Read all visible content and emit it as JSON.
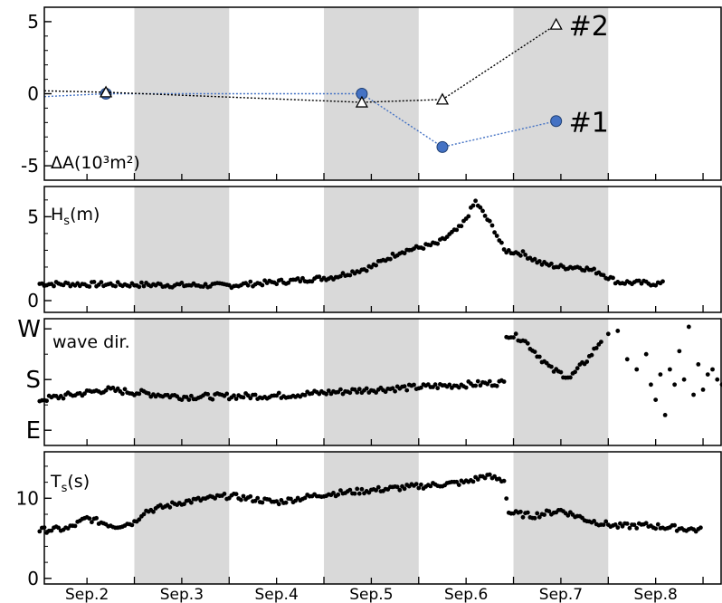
{
  "chart_data": [
    {
      "type": "line",
      "label": "ΔA(10³m²)",
      "y_ticks": [
        5,
        0,
        -5
      ],
      "ylim": [
        -6,
        6
      ],
      "series": [
        {
          "name": "#1",
          "color": "#4472c4",
          "line_style": "dotted",
          "marker": "filled-circle",
          "start_y": -0.2,
          "points": [
            [
              2.2,
              0.0
            ],
            [
              4.9,
              0.0
            ],
            [
              5.75,
              -3.7
            ],
            [
              6.95,
              -1.9
            ]
          ]
        },
        {
          "name": "#2",
          "color": "#000000",
          "line_style": "dotted",
          "marker": "open-triangle",
          "start_y": 0.2,
          "points": [
            [
              2.2,
              0.1
            ],
            [
              4.9,
              -0.6
            ],
            [
              5.75,
              -0.4
            ],
            [
              6.95,
              4.8
            ]
          ]
        }
      ]
    },
    {
      "type": "scatter",
      "label_main": "H",
      "label_sub": "s",
      "label_unit": "(m)",
      "y_ticks": [
        5,
        0
      ],
      "ylim": [
        -0.7,
        6.8
      ],
      "anchors": [
        [
          1.5,
          1.0
        ],
        [
          3.5,
          0.9
        ],
        [
          4.0,
          1.1
        ],
        [
          4.6,
          1.4
        ],
        [
          5.0,
          2.0
        ],
        [
          5.3,
          2.9
        ],
        [
          5.7,
          3.4
        ],
        [
          5.95,
          4.4
        ],
        [
          6.1,
          5.9
        ],
        [
          6.3,
          4.2
        ],
        [
          6.4,
          3.0
        ],
        [
          6.6,
          2.8
        ],
        [
          6.8,
          2.2
        ],
        [
          7.0,
          2.0
        ],
        [
          7.2,
          2.0
        ],
        [
          7.4,
          1.7
        ],
        [
          7.6,
          1.1
        ],
        [
          8.1,
          1.0
        ]
      ]
    },
    {
      "type": "scatter",
      "label": "wave dir.",
      "y_ticks": [
        "W",
        "S",
        "E"
      ],
      "ylim": [
        -0.15,
        1.1
      ],
      "anchors": [
        [
          1.5,
          0.3
        ],
        [
          2.2,
          0.4
        ],
        [
          3.0,
          0.33
        ],
        [
          4.0,
          0.34
        ],
        [
          5.0,
          0.4
        ],
        [
          6.0,
          0.45
        ],
        [
          6.4,
          0.47
        ],
        [
          6.42,
          0.95
        ],
        [
          6.6,
          0.9
        ],
        [
          6.9,
          0.6
        ],
        [
          7.1,
          0.52
        ],
        [
          7.3,
          0.72
        ],
        [
          7.45,
          0.92
        ]
      ],
      "scattered_points": [
        [
          7.5,
          0.95
        ],
        [
          7.6,
          0.98
        ],
        [
          7.7,
          0.7
        ],
        [
          7.8,
          0.6
        ],
        [
          7.9,
          0.75
        ],
        [
          7.95,
          0.45
        ],
        [
          8.0,
          0.3
        ],
        [
          8.05,
          0.55
        ],
        [
          8.1,
          0.15
        ],
        [
          8.15,
          0.6
        ],
        [
          8.2,
          0.45
        ],
        [
          8.25,
          0.78
        ],
        [
          8.3,
          0.5
        ],
        [
          8.35,
          1.02
        ],
        [
          8.4,
          0.35
        ],
        [
          8.45,
          0.65
        ],
        [
          8.5,
          0.4
        ],
        [
          8.55,
          0.55
        ],
        [
          8.6,
          0.6
        ],
        [
          8.65,
          0.5
        ],
        [
          8.7,
          0.45
        ]
      ]
    },
    {
      "type": "scatter",
      "label_main": "T",
      "label_sub": "s",
      "label_unit": "(s)",
      "y_ticks": [
        10,
        0
      ],
      "ylim": [
        -0.7,
        15.8
      ],
      "anchors": [
        [
          1.5,
          6.0
        ],
        [
          1.8,
          6.2
        ],
        [
          2.0,
          7.5
        ],
        [
          2.3,
          6.5
        ],
        [
          2.5,
          7.0
        ],
        [
          2.6,
          8.3
        ],
        [
          3.0,
          9.5
        ],
        [
          3.5,
          10.3
        ],
        [
          4.0,
          9.5
        ],
        [
          4.5,
          10.5
        ],
        [
          5.0,
          11.0
        ],
        [
          5.5,
          11.5
        ],
        [
          6.0,
          12.0
        ],
        [
          6.2,
          12.8
        ],
        [
          6.4,
          12.2
        ],
        [
          6.45,
          8.2
        ],
        [
          6.7,
          7.8
        ],
        [
          7.0,
          8.5
        ],
        [
          7.3,
          7.2
        ],
        [
          7.6,
          6.5
        ],
        [
          7.9,
          6.6
        ],
        [
          8.5,
          6.0
        ]
      ]
    }
  ],
  "x_axis": {
    "ticks": [
      "Sep.2",
      "Sep.3",
      "Sep.4",
      "Sep.5",
      "Sep.6",
      "Sep.7",
      "Sep.8"
    ],
    "xlim": [
      1.55,
      8.7
    ],
    "shaded_day_bands": [
      [
        2.5,
        3.5
      ],
      [
        4.5,
        5.5
      ],
      [
        6.5,
        7.5
      ]
    ]
  }
}
